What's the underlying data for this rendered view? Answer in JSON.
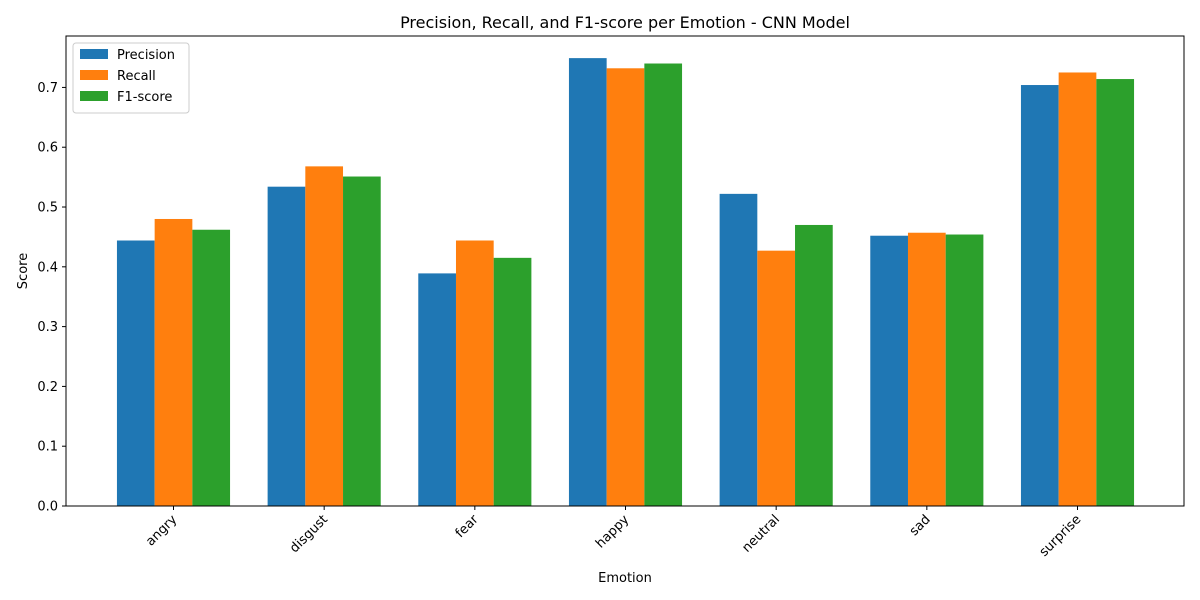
{
  "chart_data": {
    "type": "bar",
    "title": "Precision, Recall, and F1-score per Emotion - CNN Model",
    "xlabel": "Emotion",
    "ylabel": "Score",
    "categories": [
      "angry",
      "disgust",
      "fear",
      "happy",
      "neutral",
      "sad",
      "surprise"
    ],
    "series": [
      {
        "name": "Precision",
        "color": "#1f77b4",
        "values": [
          0.444,
          0.534,
          0.389,
          0.749,
          0.522,
          0.452,
          0.704
        ]
      },
      {
        "name": "Recall",
        "color": "#ff7f0e",
        "values": [
          0.48,
          0.568,
          0.444,
          0.732,
          0.427,
          0.457,
          0.725
        ]
      },
      {
        "name": "F1-score",
        "color": "#2ca02c",
        "values": [
          0.462,
          0.551,
          0.415,
          0.74,
          0.47,
          0.454,
          0.714
        ]
      }
    ],
    "ylim": [
      0,
      0.786
    ],
    "yticks": [
      "0.0",
      "0.1",
      "0.2",
      "0.3",
      "0.4",
      "0.5",
      "0.6",
      "0.7"
    ],
    "grid": false,
    "legend": "upper-left",
    "xtick_rotation_deg": 45
  }
}
